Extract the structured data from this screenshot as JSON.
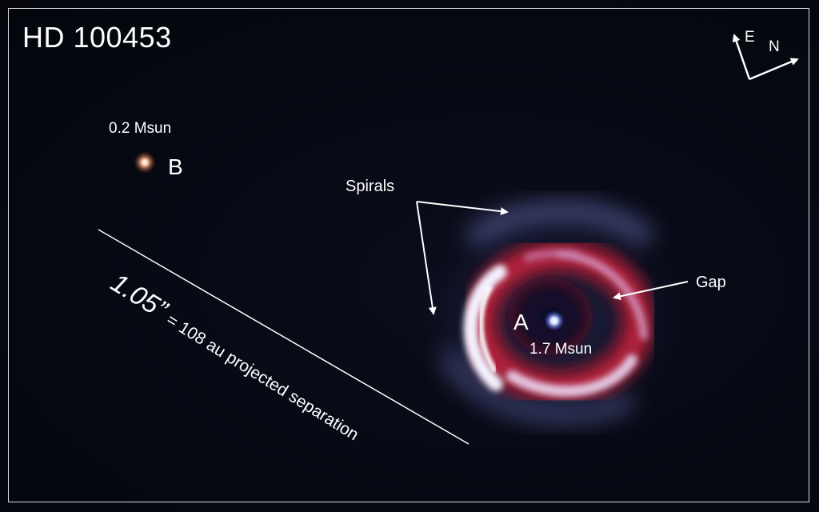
{
  "title": "HD 100453",
  "star_b": {
    "label": "B",
    "mass": "0.2 Msun",
    "color": "#f0b08a"
  },
  "star_a": {
    "label": "A",
    "mass": "1.7 Msun",
    "color": "#dfeaff"
  },
  "annotations": {
    "spirals": "Spirals",
    "gap": "Gap"
  },
  "separation": {
    "angle": "1.05”",
    "text": "= 108 au projected separation"
  },
  "compass": {
    "east": "E",
    "north": "N"
  },
  "colors": {
    "background": "#05070f",
    "disk_red": "#9b1f38",
    "disk_white": "#f2f0ff",
    "disk_blue": "#7f86d8"
  }
}
